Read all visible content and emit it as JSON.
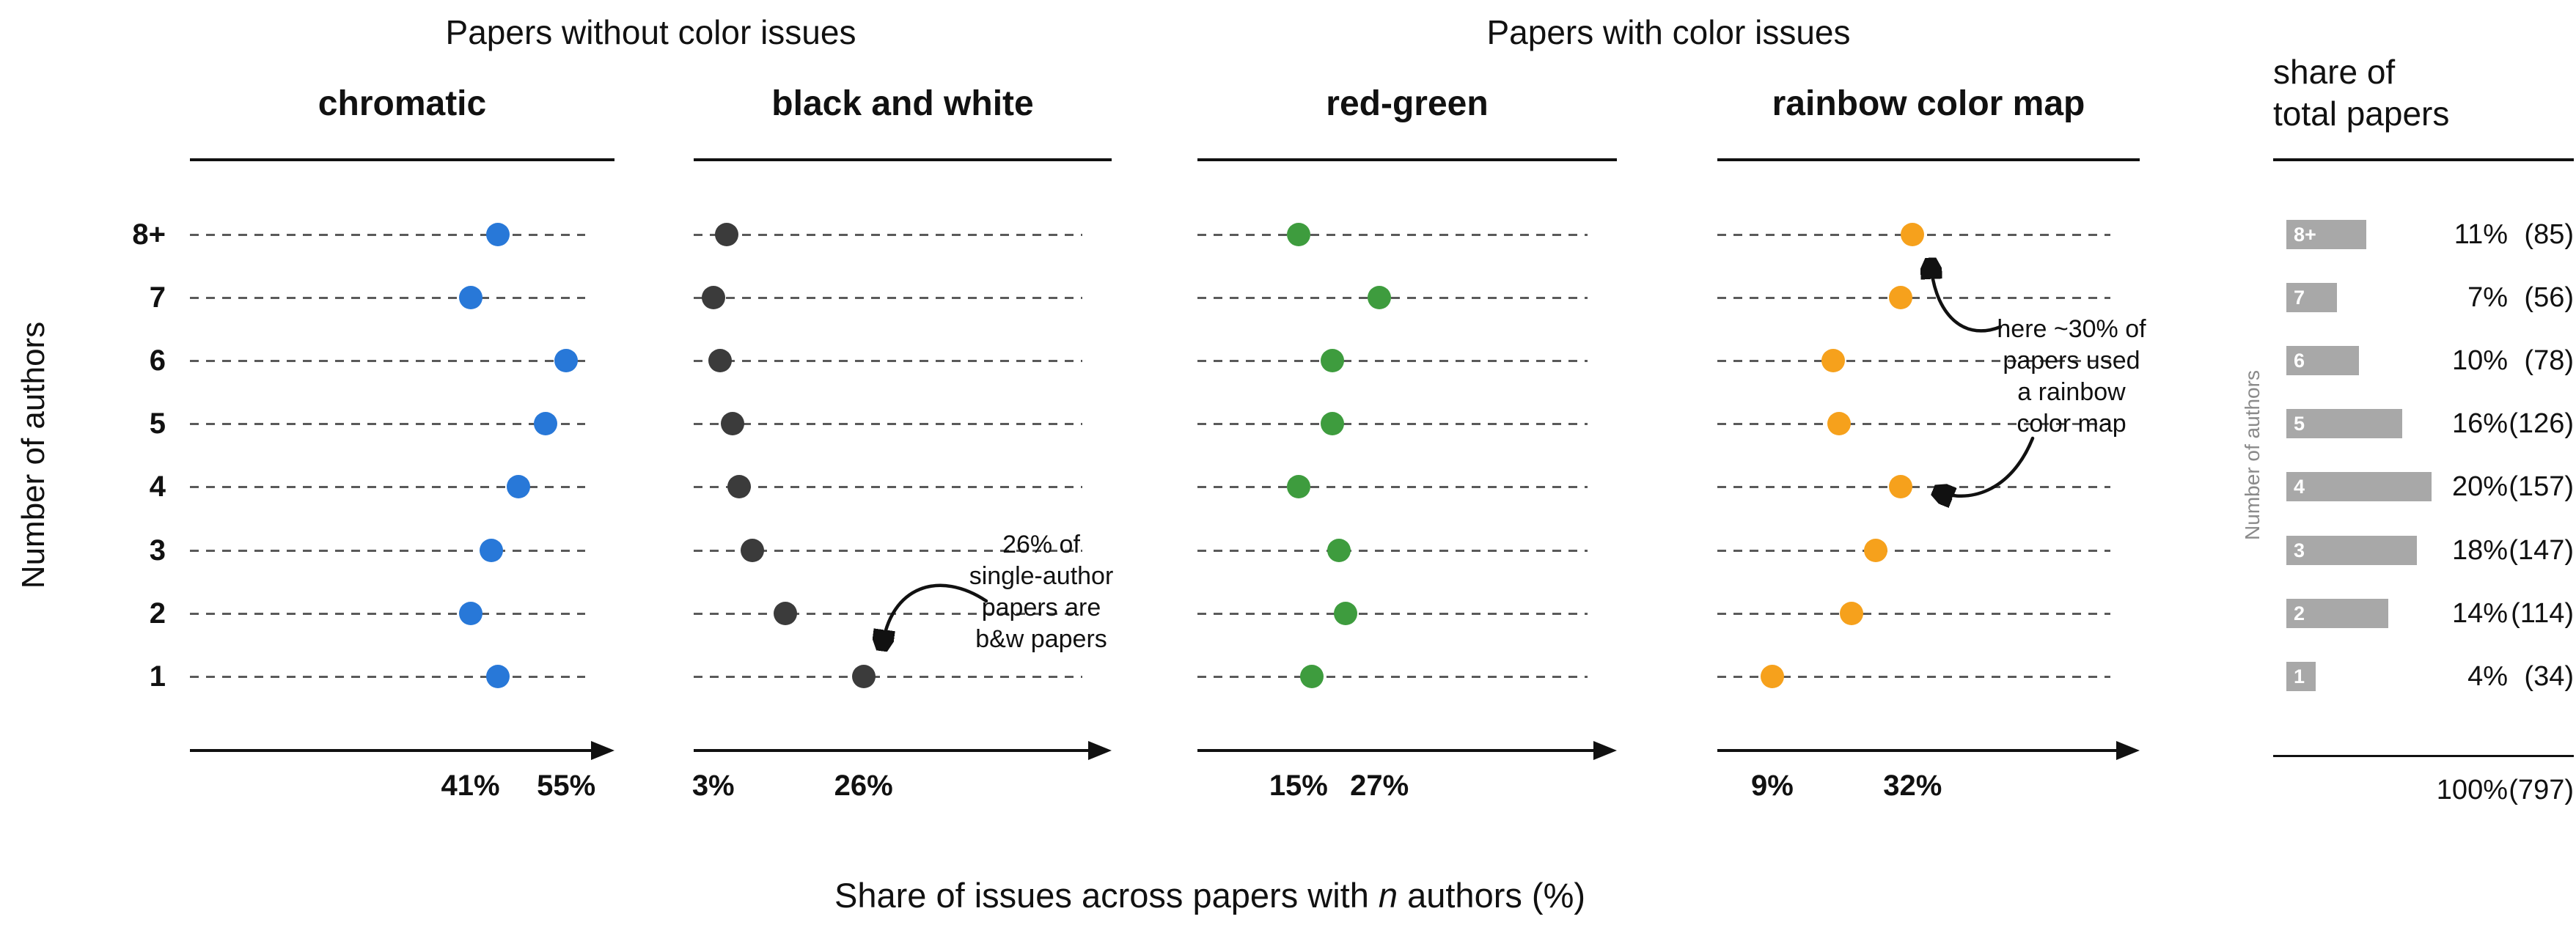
{
  "chart_data": {
    "type": "dot-plot-multi-panel",
    "group_headers": [
      "Papers without color issues",
      "Papers with color issues"
    ],
    "ylabel": "Number of authors",
    "xlabel": "Share of issues across papers with n authors (%)",
    "xlabel_parts": {
      "pre": "Share of issues across papers with ",
      "italic": "n",
      "post": " authors (%)"
    },
    "rows": [
      "8+",
      "7",
      "6",
      "5",
      "4",
      "3",
      "2",
      "1"
    ],
    "grid": "dashed horizontal line per author row",
    "legend": "none",
    "panels": [
      {
        "title": "chromatic",
        "group": "Papers without color issues",
        "color": "#2878D8",
        "xlim_pct": [
          0,
          61
        ],
        "ticks": [
          41,
          55
        ],
        "tick_labels": [
          "41%",
          "55%"
        ],
        "values": [
          45,
          41,
          55,
          52,
          48,
          44,
          41,
          45
        ]
      },
      {
        "title": "black and white",
        "group": "Papers without color issues",
        "color": "#3B3B3B",
        "xlim_pct": [
          0,
          64
        ],
        "ticks": [
          3,
          26
        ],
        "tick_labels": [
          "3%",
          "26%"
        ],
        "values": [
          5,
          3,
          4,
          6,
          7,
          9,
          14,
          26
        ]
      },
      {
        "title": "red-green",
        "group": "Papers with color issues",
        "color": "#3E9C3E",
        "xlim_pct": [
          0,
          62
        ],
        "ticks": [
          15,
          27
        ],
        "tick_labels": [
          "15%",
          "27%"
        ],
        "values": [
          15,
          27,
          20,
          20,
          15,
          21,
          22,
          17
        ]
      },
      {
        "title": "rainbow color map",
        "group": "Papers with color issues",
        "color": "#F6A11C",
        "xlim_pct": [
          0,
          69
        ],
        "ticks": [
          9,
          32
        ],
        "tick_labels": [
          "9%",
          "32%"
        ],
        "values": [
          32,
          30,
          19,
          20,
          30,
          26,
          22,
          9
        ]
      }
    ],
    "annotations": [
      {
        "target_panel": "black and white",
        "target_row": "1",
        "lines": [
          "26% of",
          "single-author",
          "papers are",
          "b&w papers"
        ]
      },
      {
        "target_panel": "rainbow color map",
        "target_rows": [
          "8+",
          "4"
        ],
        "lines": [
          "here ~30% of",
          "papers used",
          "a rainbow",
          "color map"
        ]
      }
    ],
    "share_panel": {
      "title_lines": [
        "share of",
        "total papers"
      ],
      "ylabel": "Number of authors",
      "bar_color": "#A8A8A8",
      "rows": [
        {
          "label": "8+",
          "pct": 11,
          "pct_label": "11%",
          "count": 85,
          "count_label": "(85)"
        },
        {
          "label": "7",
          "pct": 7,
          "pct_label": "7%",
          "count": 56,
          "count_label": "(56)"
        },
        {
          "label": "6",
          "pct": 10,
          "pct_label": "10%",
          "count": 78,
          "count_label": "(78)"
        },
        {
          "label": "5",
          "pct": 16,
          "pct_label": "16%",
          "count": 126,
          "count_label": "(126)"
        },
        {
          "label": "4",
          "pct": 20,
          "pct_label": "20%",
          "count": 157,
          "count_label": "(157)"
        },
        {
          "label": "3",
          "pct": 18,
          "pct_label": "18%",
          "count": 147,
          "count_label": "(147)"
        },
        {
          "label": "2",
          "pct": 14,
          "pct_label": "14%",
          "count": 114,
          "count_label": "(114)"
        },
        {
          "label": "1",
          "pct": 4,
          "pct_label": "4%",
          "count": 34,
          "count_label": "(34)"
        }
      ],
      "total_pct_label": "100%",
      "total_count_label": "(797)"
    }
  }
}
